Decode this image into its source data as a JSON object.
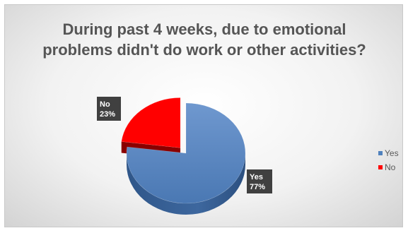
{
  "chart_data": {
    "type": "pie",
    "title": "During past 4 weeks, due to emotional problems didn't do work or other activities?",
    "categories": [
      "Yes",
      "No"
    ],
    "values": [
      77,
      23
    ],
    "data_labels": [
      {
        "category": "Yes",
        "percent": "77%"
      },
      {
        "category": "No",
        "percent": "23%"
      }
    ],
    "colors": {
      "Yes": "#4f81bd",
      "No": "#ff0000"
    },
    "exploded": [
      "No"
    ],
    "style": "3D",
    "legend_position": "right"
  },
  "legend": {
    "items": [
      {
        "label": "Yes",
        "color": "#4f81bd"
      },
      {
        "label": "No",
        "color": "#ff0000"
      }
    ]
  }
}
